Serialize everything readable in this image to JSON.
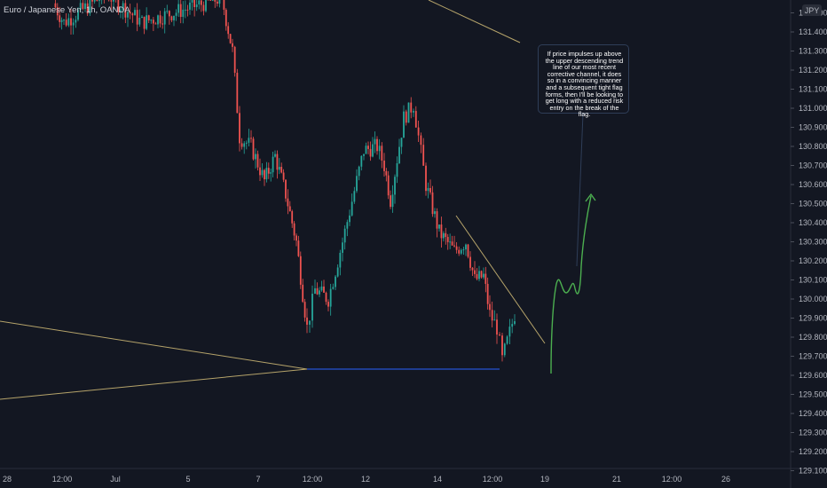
{
  "chart_data": {
    "type": "candlestick",
    "title": "Euro / Japanese Yen, 1h, OANDA",
    "currency_label": "JPY",
    "y_ticks": [
      "131.500",
      "131.400",
      "131.300",
      "131.200",
      "131.100",
      "131.000",
      "130.900",
      "130.800",
      "130.700",
      "130.600",
      "130.500",
      "130.400",
      "130.300",
      "130.200",
      "130.100",
      "130.000",
      "129.900",
      "129.800",
      "129.700",
      "129.600",
      "129.500",
      "129.400",
      "129.300",
      "129.200",
      "129.100"
    ],
    "x_ticks": [
      "28",
      "12:00",
      "Jul",
      "5",
      "7",
      "12:00",
      "12",
      "14",
      "12:00",
      "19",
      "21",
      "12:00",
      "26"
    ],
    "ylim": [
      129.1,
      131.6
    ],
    "colors": {
      "up": "#26a69a",
      "down": "#ef5350",
      "trendline": "#b5a36a",
      "support": "#2962ff",
      "projection": "#4caf50"
    },
    "price_path": [
      {
        "x": "28 12:00",
        "y": 131.55
      },
      {
        "x": "Jul 1",
        "y": 131.45
      },
      {
        "x": "Jul 2",
        "y": 131.6
      },
      {
        "x": "Jul 3",
        "y": 131.45
      },
      {
        "x": "Jul 5",
        "y": 131.58
      },
      {
        "x": "Jul 6",
        "y": 131.3
      },
      {
        "x": "Jul 6 12:00",
        "y": 130.85
      },
      {
        "x": "Jul 7",
        "y": 130.8
      },
      {
        "x": "Jul 7 12:00",
        "y": 130.62
      },
      {
        "x": "Jul 8",
        "y": 130.75
      },
      {
        "x": "Jul 8 12:00",
        "y": 130.55
      },
      {
        "x": "Jul 9",
        "y": 130.3
      },
      {
        "x": "Jul 9 12:00",
        "y": 129.85
      },
      {
        "x": "Jul 10",
        "y": 130.05
      },
      {
        "x": "Jul 10 12:00",
        "y": 130.0
      },
      {
        "x": "Jul 11",
        "y": 130.3
      },
      {
        "x": "Jul 11 12:00",
        "y": 130.78
      },
      {
        "x": "Jul 12",
        "y": 130.8
      },
      {
        "x": "Jul 12 12:00",
        "y": 130.7
      },
      {
        "x": "Jul 13",
        "y": 130.52
      },
      {
        "x": "Jul 13 12:00",
        "y": 130.95
      },
      {
        "x": "Jul 14",
        "y": 131.02
      },
      {
        "x": "Jul 14 12:00",
        "y": 130.6
      },
      {
        "x": "Jul 15",
        "y": 130.35
      },
      {
        "x": "Jul 15 12:00",
        "y": 130.25
      },
      {
        "x": "Jul 16",
        "y": 130.3
      },
      {
        "x": "Jul 16 12:00",
        "y": 130.1
      },
      {
        "x": "Jul 17",
        "y": 130.12
      },
      {
        "x": "Jul 17 12:00",
        "y": 129.92
      },
      {
        "x": "Jul 18",
        "y": 129.85
      },
      {
        "x": "Jul 18 12:00",
        "y": 129.68
      },
      {
        "x": "Jul 19",
        "y": 129.92
      }
    ],
    "annotation": "If price impulses up above the upper descending trend line of our most recent corrective channel, it does so in a convincing manner and a subsequent tight flag forms, then I'll be looking to get long with a reduced risk entry on the break of the flag."
  }
}
